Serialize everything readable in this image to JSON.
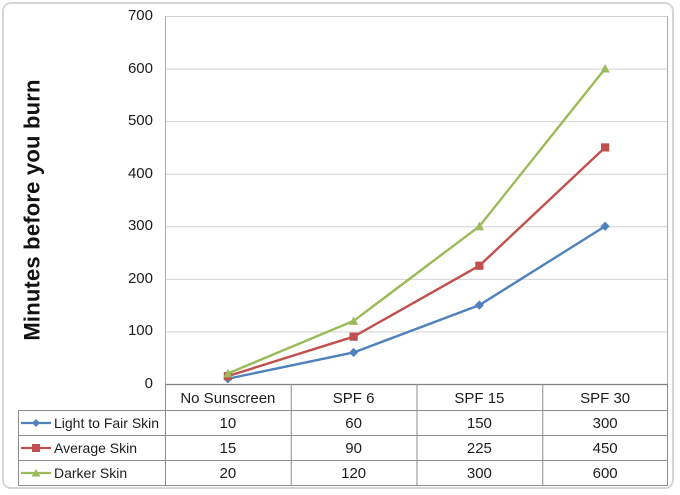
{
  "figure": {
    "background": "#ffffff",
    "border_color": "#d6d6d6"
  },
  "chart_data": {
    "type": "line",
    "title": "",
    "ylabel": "Minutes before you burn",
    "xlabel": "",
    "categories": [
      "No Sunscreen",
      "SPF 6",
      "SPF 15",
      "SPF 30"
    ],
    "series": [
      {
        "name": "Light to Fair Skin",
        "marker": "diamond",
        "color": "#4F81BD",
        "values": [
          10,
          60,
          150,
          300
        ]
      },
      {
        "name": "Average Skin",
        "marker": "square",
        "color": "#C0504D",
        "values": [
          15,
          90,
          225,
          450
        ]
      },
      {
        "name": "Darker Skin",
        "marker": "triangle",
        "color": "#9BBB59",
        "values": [
          20,
          120,
          300,
          600
        ]
      }
    ],
    "ylim": [
      0,
      700
    ],
    "yticks": [
      0,
      100,
      200,
      300,
      400,
      500,
      600,
      700
    ],
    "gridlines": true,
    "legend_position": "data-table-left",
    "data_table_shown": true
  },
  "colors": {
    "gridline": "#d2d2d2",
    "plot_border": "#ababab",
    "axis_line": "#808080",
    "table_border": "#8c8c8c",
    "text": "#1d1d1d"
  }
}
